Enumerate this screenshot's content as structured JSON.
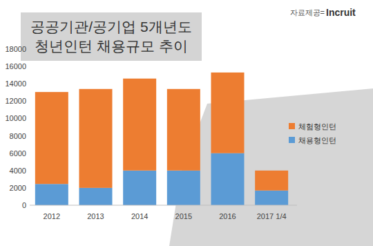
{
  "chart_data": {
    "type": "bar",
    "stacked": true,
    "title": "공공기관/공기업 5개년도\n청년인턴 채용규모 추이",
    "annotations": [
      "자료제공=",
      "Incruit"
    ],
    "categories": [
      "2012",
      "2013",
      "2014",
      "2015",
      "2016",
      "2017 1/4"
    ],
    "series": [
      {
        "name": "채용형인턴",
        "color": "#5b9bd5",
        "values": [
          2450,
          2000,
          4000,
          4000,
          6000,
          1700
        ]
      },
      {
        "name": "체험형인턴",
        "color": "#ed7d31",
        "values": [
          10600,
          11400,
          10600,
          9400,
          9300,
          2300
        ]
      }
    ],
    "ylim": [
      0,
      18000
    ],
    "yticks": [
      0,
      2000,
      4000,
      6000,
      8000,
      10000,
      12000,
      14000,
      16000,
      18000
    ],
    "grid": false,
    "legend": "right"
  }
}
